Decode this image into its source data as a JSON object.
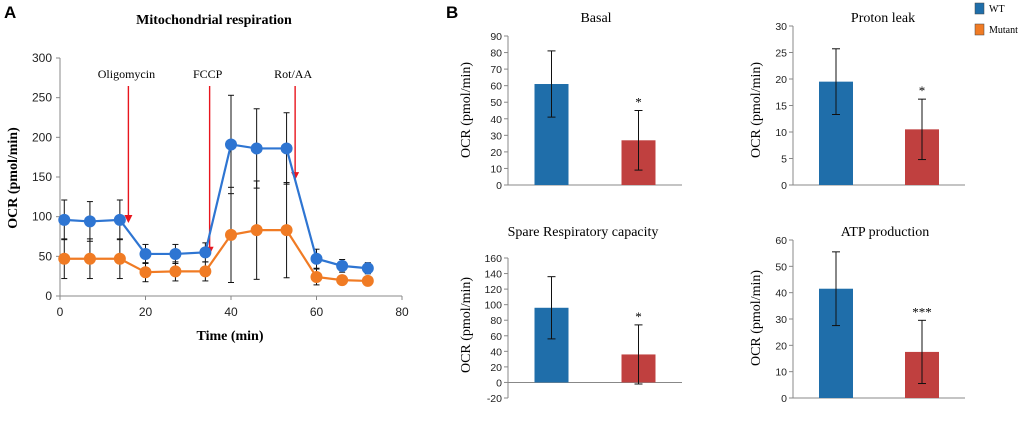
{
  "panel_labels": [
    "A",
    "B"
  ],
  "colors": {
    "wt_line": "#2E75D2",
    "mutant_line": "#F07B24",
    "wt_bar": "#1F6EAA",
    "mutant_bar": "#C0403F",
    "arrow": "#E8151D"
  },
  "legend": {
    "items": [
      "WT",
      "Mutant"
    ]
  },
  "chart_data": [
    {
      "type": "line",
      "title": "Mitochondrial  respiration",
      "xlabel": "Time (min)",
      "ylabel": "OCR (pmol/min)",
      "xlim": [
        0,
        80
      ],
      "ylim": [
        0,
        300
      ],
      "xticks": [
        "0",
        "20",
        "40",
        "60",
        "80"
      ],
      "yticks": [
        "0",
        "50",
        "100",
        "150",
        "200",
        "250",
        "300"
      ],
      "annotations": [
        {
          "label": "Oligomycin",
          "x": 16
        },
        {
          "label": "FCCP",
          "x": 35
        },
        {
          "label": "Rot/AA",
          "x": 55
        }
      ],
      "series": [
        {
          "name": "WT",
          "x": [
            1,
            7,
            14,
            20,
            27,
            34,
            40,
            46,
            53,
            60,
            66,
            72
          ],
          "values": [
            96,
            94,
            96,
            53,
            53,
            55,
            191,
            186,
            186,
            47,
            38,
            35
          ],
          "error": [
            25,
            25,
            25,
            12,
            12,
            12,
            62,
            50,
            45,
            12,
            8,
            7
          ]
        },
        {
          "name": "Mutant",
          "x": [
            1,
            7,
            14,
            20,
            27,
            34,
            40,
            46,
            53,
            60,
            66,
            72
          ],
          "values": [
            47,
            47,
            47,
            30,
            31,
            31,
            77,
            83,
            83,
            24,
            20,
            19
          ],
          "error": [
            25,
            25,
            25,
            12,
            12,
            12,
            60,
            62,
            60,
            10,
            5,
            5
          ]
        }
      ]
    },
    {
      "type": "bar",
      "title": "Basal",
      "ylabel": "OCR (pmol/min)",
      "ylim": [
        0,
        90
      ],
      "yticks": [
        "0",
        "10",
        "20",
        "30",
        "40",
        "50",
        "60",
        "70",
        "80",
        "90"
      ],
      "categories": [
        "WT",
        "Mutant"
      ],
      "values": [
        61,
        27
      ],
      "error": [
        20,
        18
      ],
      "significance": [
        "",
        "*"
      ]
    },
    {
      "type": "bar",
      "title": "Proton leak",
      "ylabel": "OCR (pmol/min)",
      "ylim": [
        0,
        30
      ],
      "yticks": [
        "0",
        "5",
        "10",
        "15",
        "20",
        "25",
        "30"
      ],
      "categories": [
        "WT",
        "Mutant"
      ],
      "values": [
        19.5,
        10.5
      ],
      "error": [
        6.2,
        5.7
      ],
      "significance": [
        "",
        "*"
      ]
    },
    {
      "type": "bar",
      "title": "Spare Respiratory  capacity",
      "ylabel": "OCR (pmol/min)",
      "ylim": [
        -20,
        160
      ],
      "yticks": [
        "-20",
        "0",
        "20",
        "40",
        "60",
        "80",
        "100",
        "120",
        "140",
        "160"
      ],
      "categories": [
        "WT",
        "Mutant"
      ],
      "values": [
        96,
        36
      ],
      "error": [
        40,
        38
      ],
      "significance": [
        "",
        "*"
      ]
    },
    {
      "type": "bar",
      "title": "ATP production",
      "ylabel": "OCR (pmol/min)",
      "ylim": [
        0,
        60
      ],
      "yticks": [
        "0",
        "10",
        "20",
        "30",
        "40",
        "50",
        "60"
      ],
      "categories": [
        "WT",
        "Mutant"
      ],
      "values": [
        41.5,
        17.5
      ],
      "error": [
        14,
        12
      ],
      "significance": [
        "",
        "***"
      ]
    }
  ]
}
